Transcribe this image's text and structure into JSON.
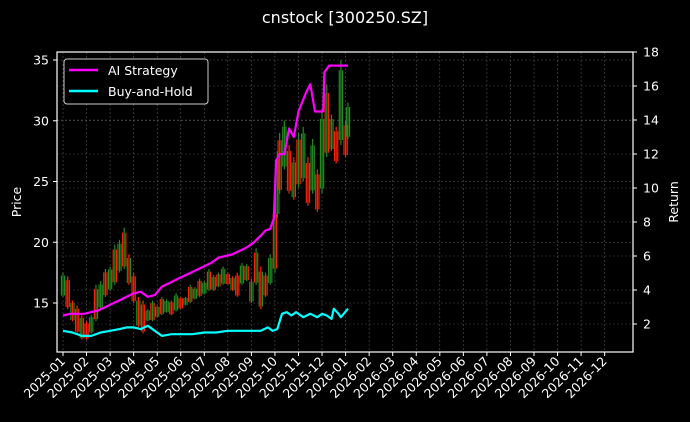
{
  "title": "cnstock [300250.SZ]",
  "chart_data": {
    "type": "line",
    "title": "cnstock [300250.SZ]",
    "xlabel": "",
    "ylabel_left": "Price",
    "ylabel_right": "Return",
    "ylim_left": [
      11,
      35.7
    ],
    "ylim_right": [
      0.35,
      18
    ],
    "grid": true,
    "legend_position": "upper left",
    "x_tick_labels": [
      "2025-01",
      "2025-02",
      "2025-03",
      "2025-04",
      "2025-05",
      "2025-06",
      "2025-07",
      "2025-08",
      "2025-09",
      "2025-10",
      "2025-11",
      "2025-12",
      "2026-01",
      "2026-02",
      "2026-03",
      "2026-04",
      "2026-05",
      "2026-06",
      "2026-07",
      "2026-08",
      "2026-09",
      "2026-10",
      "2026-11",
      "2026-12"
    ],
    "y_ticks_left": [
      15,
      20,
      25,
      30,
      35
    ],
    "y_ticks_right": [
      2,
      4,
      6,
      8,
      10,
      12,
      14,
      16,
      18
    ],
    "series": [
      {
        "name": "AI Strategy",
        "axis": "right",
        "color": "#ff00ff",
        "x_month": [
          0.0,
          0.3,
          0.6,
          0.9,
          1.2,
          1.5,
          1.8,
          2.1,
          2.4,
          2.7,
          3.0,
          3.3,
          3.6,
          3.9,
          4.2,
          4.5,
          4.8,
          5.1,
          5.4,
          5.7,
          6.0,
          6.3,
          6.6,
          6.9,
          7.2,
          7.5,
          7.8,
          8.1,
          8.4,
          8.6,
          8.8,
          8.95,
          9.05,
          9.2,
          9.4,
          9.6,
          9.8,
          10.0,
          10.2,
          10.35,
          10.5,
          10.7,
          10.9,
          11.05,
          11.1,
          11.3,
          11.5,
          11.6,
          12.1
        ],
        "values": [
          2.5,
          2.6,
          2.6,
          2.6,
          2.7,
          2.8,
          3.0,
          3.2,
          3.4,
          3.6,
          3.8,
          3.9,
          3.6,
          3.7,
          4.2,
          4.4,
          4.6,
          4.8,
          5.0,
          5.2,
          5.4,
          5.6,
          5.9,
          6.0,
          6.1,
          6.3,
          6.5,
          6.8,
          7.2,
          7.5,
          7.6,
          8.2,
          11.6,
          12.0,
          12.0,
          13.5,
          13.0,
          14.5,
          15.2,
          15.7,
          16.1,
          14.5,
          14.5,
          14.5,
          16.8,
          17.2,
          17.2,
          17.2,
          17.2
        ]
      },
      {
        "name": "Buy-and-Hold",
        "axis": "right",
        "color": "#00ffff",
        "x_month": [
          0.0,
          0.4,
          0.8,
          1.2,
          1.6,
          2.0,
          2.4,
          2.7,
          3.0,
          3.3,
          3.6,
          3.9,
          4.2,
          4.6,
          5.0,
          5.5,
          6.0,
          6.5,
          7.0,
          7.5,
          8.0,
          8.4,
          8.7,
          8.9,
          9.1,
          9.3,
          9.5,
          9.7,
          9.9,
          10.2,
          10.5,
          10.8,
          11.0,
          11.2,
          11.4,
          11.5,
          11.7,
          11.8,
          12.1
        ],
        "values": [
          1.6,
          1.5,
          1.3,
          1.3,
          1.5,
          1.6,
          1.7,
          1.8,
          1.8,
          1.7,
          1.9,
          1.6,
          1.3,
          1.4,
          1.4,
          1.4,
          1.5,
          1.5,
          1.6,
          1.6,
          1.6,
          1.6,
          1.8,
          1.6,
          1.7,
          2.6,
          2.7,
          2.5,
          2.7,
          2.4,
          2.6,
          2.4,
          2.6,
          2.5,
          2.3,
          2.9,
          2.6,
          2.4,
          2.9
        ]
      },
      {
        "name": "Price (OHLC bars)",
        "axis": "left",
        "up_color": "#228b22",
        "down_color": "#ff2200",
        "x_month": [
          0.0,
          0.2,
          0.4,
          0.6,
          0.8,
          1.0,
          1.2,
          1.4,
          1.6,
          1.8,
          2.0,
          2.2,
          2.4,
          2.6,
          2.8,
          3.0,
          3.2,
          3.4,
          3.6,
          3.8,
          4.0,
          4.2,
          4.4,
          4.6,
          4.8,
          5.0,
          5.2,
          5.4,
          5.6,
          5.8,
          6.0,
          6.2,
          6.4,
          6.6,
          6.8,
          7.0,
          7.2,
          7.4,
          7.6,
          7.8,
          8.0,
          8.2,
          8.4,
          8.6,
          8.8,
          9.0,
          9.1,
          9.2,
          9.4,
          9.6,
          9.8,
          10.0,
          10.2,
          10.4,
          10.6,
          10.8,
          11.0,
          11.2,
          11.4,
          11.6,
          11.8,
          12.0,
          12.1
        ],
        "high": [
          17.5,
          17.2,
          15.2,
          14.8,
          14.0,
          13.5,
          14.0,
          16.5,
          16.8,
          17.8,
          18.0,
          19.8,
          20.2,
          21.2,
          19.0,
          17.5,
          15.5,
          15.2,
          14.5,
          15.2,
          14.8,
          15.5,
          15.3,
          15.2,
          15.8,
          15.5,
          15.5,
          16.5,
          16.3,
          17.0,
          16.8,
          17.8,
          17.3,
          17.5,
          18.0,
          17.5,
          17.2,
          17.5,
          18.3,
          18.2,
          17.0,
          19.5,
          18.0,
          17.5,
          19.0,
          23.0,
          27.5,
          29.0,
          30.0,
          28.0,
          27.0,
          29.0,
          29.5,
          27.0,
          28.5,
          26.0,
          31.0,
          33.0,
          30.5,
          29.5,
          35.0,
          30.0,
          31.5
        ],
        "low": [
          15.5,
          14.5,
          13.5,
          12.5,
          12.0,
          12.0,
          12.5,
          13.5,
          14.5,
          15.5,
          16.0,
          16.5,
          17.5,
          17.8,
          16.5,
          15.0,
          13.0,
          12.5,
          13.5,
          13.5,
          13.8,
          14.0,
          14.2,
          14.0,
          14.3,
          14.5,
          14.8,
          15.0,
          15.3,
          15.5,
          15.7,
          16.0,
          16.0,
          16.3,
          16.5,
          16.5,
          16.0,
          15.5,
          16.5,
          16.8,
          15.0,
          16.5,
          14.5,
          15.5,
          16.5,
          17.5,
          22.0,
          24.0,
          26.0,
          24.0,
          23.5,
          24.5,
          25.0,
          23.0,
          24.0,
          22.5,
          24.0,
          27.0,
          27.5,
          26.5,
          28.0,
          27.0,
          28.5
        ]
      }
    ]
  },
  "legend": {
    "items": [
      {
        "label": "AI Strategy",
        "color": "#ff00ff"
      },
      {
        "label": "Buy-and-Hold",
        "color": "#00ffff"
      }
    ]
  },
  "axes": {
    "left_label": "Price",
    "right_label": "Return"
  }
}
